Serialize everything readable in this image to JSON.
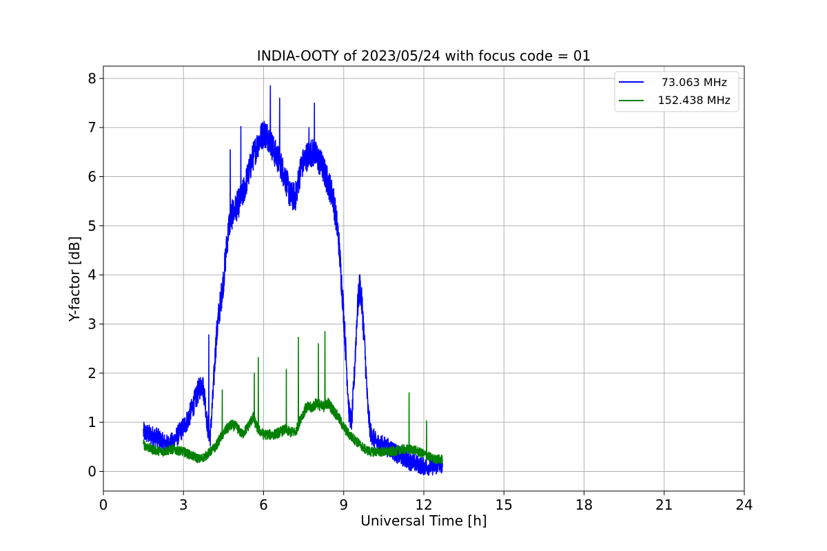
{
  "chart_data": {
    "type": "line",
    "title": "INDIA-OOTY of 2023/05/24 with focus code = 01",
    "xlabel": "Universal Time [h]",
    "ylabel": "Y-factor [dB]",
    "xlim": [
      0,
      24
    ],
    "ylim": [
      -0.4,
      8.25
    ],
    "xticks": [
      0,
      3,
      6,
      9,
      12,
      15,
      18,
      21,
      24
    ],
    "yticks": [
      0,
      1,
      2,
      3,
      4,
      5,
      6,
      7,
      8
    ],
    "grid": true,
    "legend_position": "top-right",
    "series": [
      {
        "name": "73.063 MHz",
        "color": "#0000ff",
        "noise": 0.3,
        "x": [
          1.5,
          1.7,
          2.0,
          2.2,
          2.4,
          2.6,
          2.8,
          3.0,
          3.2,
          3.4,
          3.6,
          3.7,
          3.8,
          3.9,
          4.0,
          4.1,
          4.2,
          4.3,
          4.4,
          4.5,
          4.6,
          4.7,
          4.8,
          5.0,
          5.2,
          5.4,
          5.6,
          5.8,
          6.0,
          6.2,
          6.4,
          6.6,
          6.8,
          7.0,
          7.2,
          7.4,
          7.6,
          7.8,
          8.0,
          8.2,
          8.4,
          8.6,
          8.8,
          8.9,
          9.0,
          9.1,
          9.2,
          9.3,
          9.4,
          9.5,
          9.6,
          9.7,
          9.8,
          9.9,
          10.0,
          10.1,
          10.2,
          10.4,
          10.6,
          10.8,
          11.0,
          11.5,
          12.0,
          12.4,
          12.7
        ],
        "y": [
          0.8,
          0.75,
          0.7,
          0.6,
          0.55,
          0.6,
          0.75,
          0.9,
          1.1,
          1.4,
          1.7,
          1.8,
          1.5,
          0.9,
          0.7,
          1.5,
          2.5,
          3.1,
          3.5,
          3.9,
          4.5,
          5.0,
          5.2,
          5.4,
          5.6,
          6.0,
          6.4,
          6.7,
          6.9,
          6.8,
          6.5,
          6.3,
          6.0,
          5.6,
          5.6,
          6.2,
          6.4,
          6.5,
          6.4,
          6.2,
          5.9,
          5.6,
          4.8,
          4.0,
          3.2,
          2.2,
          1.2,
          1.0,
          2.0,
          3.2,
          3.8,
          3.3,
          2.4,
          1.3,
          0.8,
          0.7,
          0.6,
          0.55,
          0.5,
          0.45,
          0.35,
          0.2,
          0.1,
          0.1,
          0.15
        ]
      },
      {
        "name": "152.438 MHz",
        "color": "#008000",
        "noise": 0.15,
        "x": [
          1.5,
          1.8,
          2.2,
          2.6,
          3.0,
          3.4,
          3.6,
          3.8,
          4.0,
          4.2,
          4.4,
          4.6,
          4.8,
          5.0,
          5.2,
          5.4,
          5.6,
          5.8,
          6.0,
          6.4,
          6.8,
          7.0,
          7.2,
          7.4,
          7.6,
          7.8,
          8.0,
          8.2,
          8.4,
          8.6,
          8.8,
          9.0,
          9.2,
          9.4,
          9.6,
          9.8,
          10.0,
          10.4,
          10.8,
          11.2,
          11.6,
          12.0,
          12.4,
          12.7
        ],
        "y": [
          0.55,
          0.45,
          0.4,
          0.45,
          0.4,
          0.3,
          0.25,
          0.3,
          0.4,
          0.5,
          0.7,
          0.85,
          0.95,
          0.9,
          0.75,
          0.9,
          1.1,
          0.85,
          0.75,
          0.75,
          0.85,
          0.8,
          0.8,
          1.1,
          1.3,
          1.3,
          1.4,
          1.3,
          1.4,
          1.25,
          1.1,
          0.9,
          0.75,
          0.65,
          0.55,
          0.45,
          0.4,
          0.4,
          0.4,
          0.45,
          0.45,
          0.35,
          0.25,
          0.25
        ]
      }
    ],
    "spikes": [
      {
        "series": 0,
        "x": 3.95,
        "y": 2.78
      },
      {
        "series": 0,
        "x": 4.75,
        "y": 6.55
      },
      {
        "series": 0,
        "x": 5.15,
        "y": 7.02
      },
      {
        "series": 0,
        "x": 6.25,
        "y": 7.85
      },
      {
        "series": 0,
        "x": 6.6,
        "y": 7.6
      },
      {
        "series": 0,
        "x": 7.9,
        "y": 7.5
      },
      {
        "series": 0,
        "x": 7.7,
        "y": 7.0
      },
      {
        "series": 1,
        "x": 4.45,
        "y": 1.66
      },
      {
        "series": 1,
        "x": 5.65,
        "y": 2.0
      },
      {
        "series": 1,
        "x": 5.8,
        "y": 2.32
      },
      {
        "series": 1,
        "x": 6.85,
        "y": 2.08
      },
      {
        "series": 1,
        "x": 7.3,
        "y": 2.73
      },
      {
        "series": 1,
        "x": 8.05,
        "y": 2.6
      },
      {
        "series": 1,
        "x": 8.3,
        "y": 2.85
      },
      {
        "series": 1,
        "x": 11.45,
        "y": 1.6
      },
      {
        "series": 1,
        "x": 12.1,
        "y": 1.03
      }
    ]
  }
}
